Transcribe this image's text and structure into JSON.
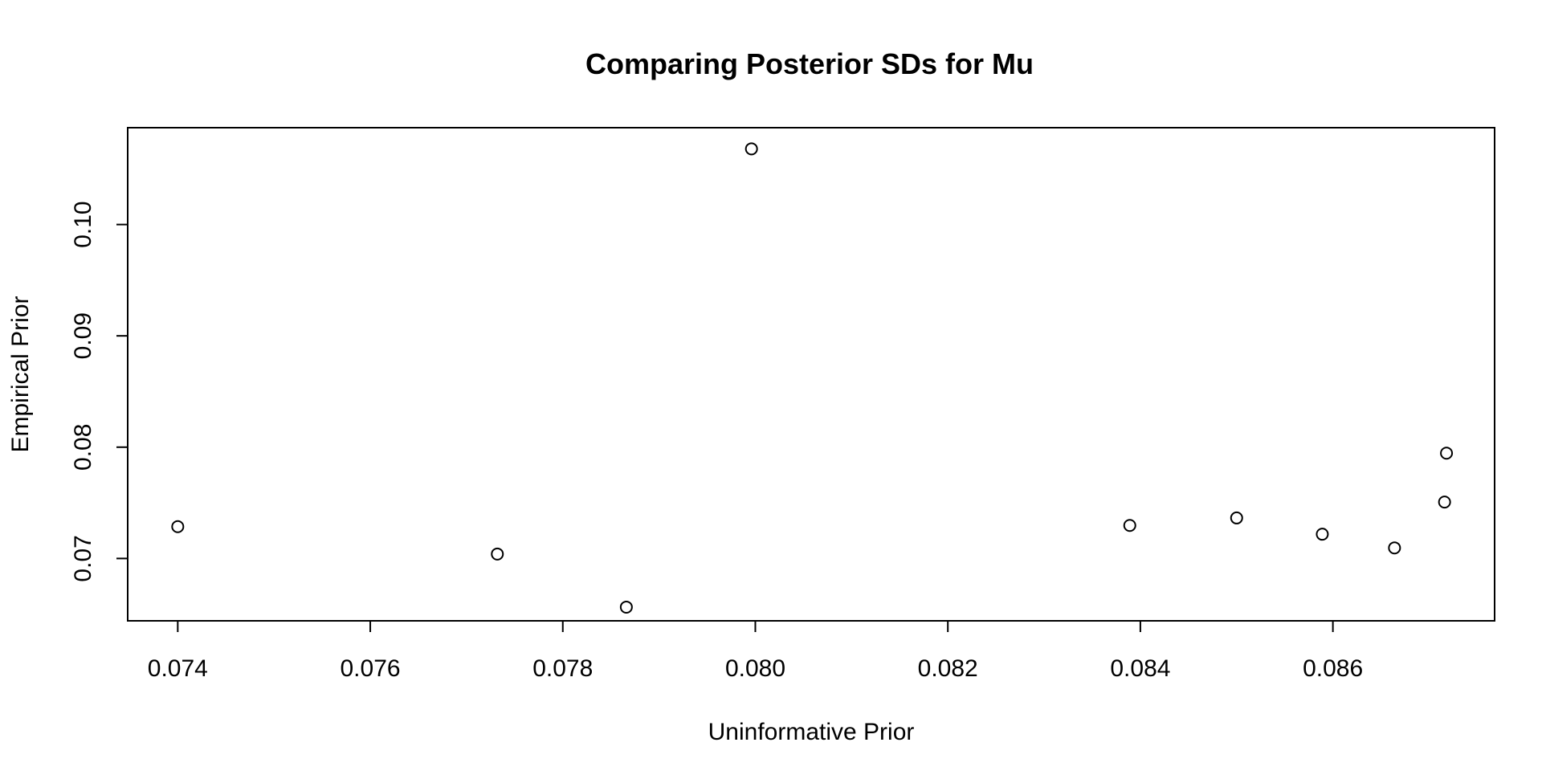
{
  "chart_data": {
    "type": "scatter",
    "title": "Comparing Posterior SDs for Mu",
    "xlabel": "Uninformative Prior",
    "ylabel": "Empirical Prior",
    "xlim": [
      0.07348,
      0.08768
    ],
    "ylim": [
      0.0644,
      0.1087
    ],
    "x_ticks": [
      "0.074",
      "0.076",
      "0.078",
      "0.080",
      "0.082",
      "0.084",
      "0.086"
    ],
    "y_ticks": [
      "0.07",
      "0.08",
      "0.09",
      "0.10"
    ],
    "grid": false,
    "marker": "open-circle",
    "points": [
      {
        "x": 0.074,
        "y": 0.07286
      },
      {
        "x": 0.07732,
        "y": 0.0704
      },
      {
        "x": 0.07866,
        "y": 0.06563
      },
      {
        "x": 0.07996,
        "y": 0.1068
      },
      {
        "x": 0.08389,
        "y": 0.07297
      },
      {
        "x": 0.085,
        "y": 0.07364
      },
      {
        "x": 0.08589,
        "y": 0.07218
      },
      {
        "x": 0.08664,
        "y": 0.07095
      },
      {
        "x": 0.08716,
        "y": 0.07507
      },
      {
        "x": 0.08718,
        "y": 0.07946
      }
    ]
  },
  "colors": {
    "background": "#ffffff",
    "foreground": "#000000"
  }
}
